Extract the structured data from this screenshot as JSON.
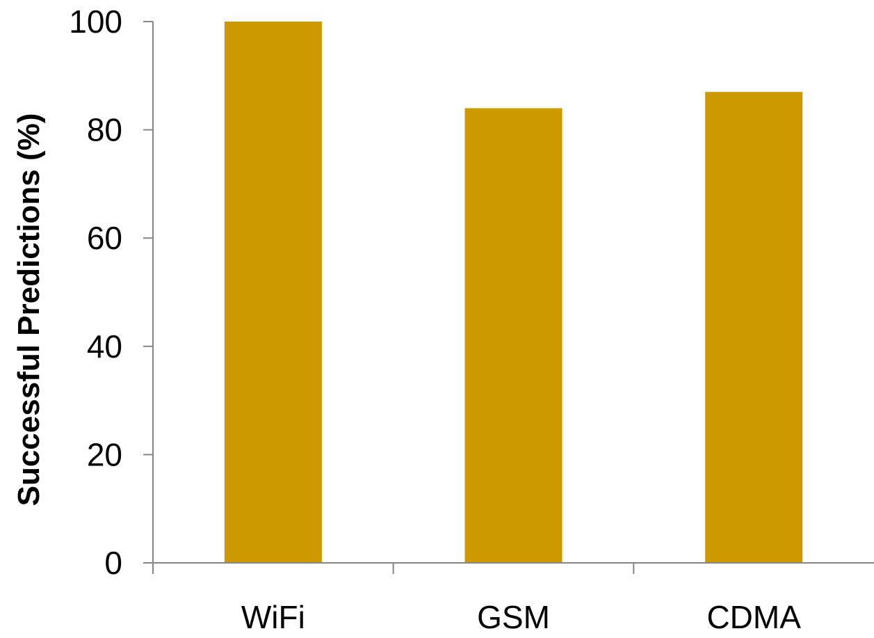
{
  "chart_data": {
    "type": "bar",
    "title": "",
    "xlabel": "",
    "ylabel": "Successful Predictions (%)",
    "categories": [
      "WiFi",
      "GSM",
      "CDMA"
    ],
    "values": [
      100,
      84,
      87
    ],
    "ylim": [
      0,
      100
    ],
    "yticks": [
      0,
      20,
      40,
      60,
      80,
      100
    ],
    "grid": false,
    "legend": "none",
    "colors": {
      "bar": "#cc9900",
      "axis": "#868686",
      "text": "#000000"
    }
  }
}
